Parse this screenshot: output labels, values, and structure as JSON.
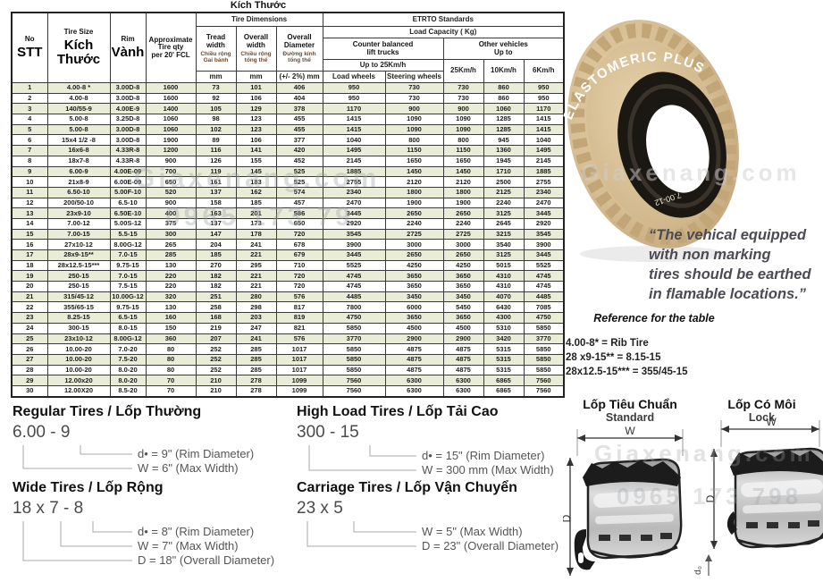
{
  "sep": "/",
  "title": "Kích Thước",
  "table": {
    "header": {
      "no": "No",
      "stt": "STT",
      "tire_size": "Tire Size",
      "kich_thuoc": "Kích Thước",
      "rim": "Rim",
      "vanh": "Vành",
      "approx_l1": "Approximate",
      "approx_l2": "Tire qty",
      "approx_l3": "per 20' FCL",
      "tire_dimensions": "Tire Dimensions",
      "etrto": "ETRTO Standards",
      "load_capacity": "Load Capacity ( Kg)",
      "tread_en": "Tread width",
      "tread_vi": "Chiều rộng Gai bánh",
      "overall_width_en": "Overall width",
      "overall_width_vi": "Chiều rộng tổng thể",
      "overall_dia_en": "Overall Diameter",
      "overall_dia_vi": "Đường kính tổng thể",
      "counter_l1": "Counter balanced",
      "counter_l2": "lift trucks",
      "other_l1": "Other vehicles",
      "other_l2": "Up to",
      "up_to_25": "Up to 25Km/h",
      "kmh_25": "25Km/h",
      "kmh_10": "10Km/h",
      "kmh_6": "6Km/h",
      "load_wheels": "Load wheels",
      "steering_wheels": "Steering wheels",
      "mm_tread": "mm",
      "mm_overall": "mm",
      "tolerance_mm": "(+/- 2%) mm"
    },
    "rows": [
      [
        "1",
        "4.00-8 *",
        "3.00D-8",
        "1600",
        "73",
        "101",
        "406",
        "950",
        "730",
        "730",
        "860",
        "950"
      ],
      [
        "2",
        "4.00-8",
        "3.00D-8",
        "1600",
        "92",
        "106",
        "404",
        "950",
        "730",
        "730",
        "860",
        "950"
      ],
      [
        "3",
        "140/55-9",
        "4.00E-9",
        "1400",
        "105",
        "129",
        "378",
        "1170",
        "900",
        "900",
        "1060",
        "1170"
      ],
      [
        "4",
        "5.00-8",
        "3.25D-8",
        "1060",
        "98",
        "123",
        "455",
        "1415",
        "1090",
        "1090",
        "1285",
        "1415"
      ],
      [
        "5",
        "5.00-8",
        "3.00D-8",
        "1060",
        "102",
        "123",
        "455",
        "1415",
        "1090",
        "1090",
        "1285",
        "1415"
      ],
      [
        "6",
        "15x4 1/2 -8",
        "3.00D-8",
        "1900",
        "89",
        "106",
        "377",
        "1040",
        "800",
        "800",
        "945",
        "1040"
      ],
      [
        "7",
        "16x6-8",
        "4.33R-8",
        "1200",
        "116",
        "141",
        "420",
        "1495",
        "1150",
        "1150",
        "1360",
        "1495"
      ],
      [
        "8",
        "18x7-8",
        "4.33R-8",
        "900",
        "126",
        "155",
        "452",
        "2145",
        "1650",
        "1650",
        "1945",
        "2145"
      ],
      [
        "9",
        "6.00-9",
        "4.00E-09",
        "700",
        "119",
        "145",
        "525",
        "1885",
        "1450",
        "1450",
        "1710",
        "1885"
      ],
      [
        "10",
        "21x8-9",
        "6.00E-09",
        "650",
        "161",
        "183",
        "525",
        "2755",
        "2120",
        "2120",
        "2500",
        "2755"
      ],
      [
        "11",
        "6.50-10",
        "5.00F-10",
        "520",
        "137",
        "162",
        "574",
        "2340",
        "1800",
        "1800",
        "2125",
        "2340"
      ],
      [
        "12",
        "200/50-10",
        "6.5-10",
        "900",
        "158",
        "185",
        "457",
        "2470",
        "1900",
        "1900",
        "2240",
        "2470"
      ],
      [
        "13",
        "23x9-10",
        "6.50E-10",
        "400",
        "163",
        "201",
        "586",
        "3445",
        "2650",
        "2650",
        "3125",
        "3445"
      ],
      [
        "14",
        "7.00-12",
        "5.00S-12",
        "375",
        "137",
        "173",
        "650",
        "2920",
        "2240",
        "2240",
        "2645",
        "2920"
      ],
      [
        "15",
        "7.00-15",
        "5.5-15",
        "300",
        "147",
        "178",
        "720",
        "3545",
        "2725",
        "2725",
        "3215",
        "3545"
      ],
      [
        "16",
        "27x10-12",
        "8.00G-12",
        "265",
        "204",
        "241",
        "678",
        "3900",
        "3000",
        "3000",
        "3540",
        "3900"
      ],
      [
        "17",
        "28x9-15**",
        "7.0-15",
        "285",
        "185",
        "221",
        "679",
        "3445",
        "2650",
        "2650",
        "3125",
        "3445"
      ],
      [
        "18",
        "28x12.5-15***",
        "9.75-15",
        "130",
        "270",
        "295",
        "710",
        "5525",
        "4250",
        "4250",
        "5015",
        "5525"
      ],
      [
        "19",
        "250-15",
        "7.0-15",
        "220",
        "182",
        "221",
        "720",
        "4745",
        "3650",
        "3650",
        "4310",
        "4745"
      ],
      [
        "20",
        "250-15",
        "7.5-15",
        "220",
        "182",
        "221",
        "720",
        "4745",
        "3650",
        "3650",
        "4310",
        "4745"
      ],
      [
        "21",
        "315/45-12",
        "10.00G-12",
        "320",
        "251",
        "280",
        "576",
        "4485",
        "3450",
        "3450",
        "4070",
        "4485"
      ],
      [
        "22",
        "355/65-15",
        "9.75-15",
        "130",
        "258",
        "298",
        "817",
        "7800",
        "6000",
        "5450",
        "6430",
        "7085"
      ],
      [
        "23",
        "8.25-15",
        "6.5-15",
        "160",
        "168",
        "203",
        "819",
        "4750",
        "3650",
        "3650",
        "4300",
        "4750"
      ],
      [
        "24",
        "300-15",
        "8.0-15",
        "150",
        "219",
        "247",
        "821",
        "5850",
        "4500",
        "4500",
        "5310",
        "5850"
      ],
      [
        "25",
        "23x10-12",
        "8.00G-12",
        "360",
        "207",
        "241",
        "576",
        "3770",
        "2900",
        "2900",
        "3420",
        "3770"
      ],
      [
        "26",
        "10.00-20",
        "7.0-20",
        "80",
        "252",
        "285",
        "1017",
        "5850",
        "4875",
        "4875",
        "5315",
        "5850"
      ],
      [
        "27",
        "10.00-20",
        "7.5-20",
        "80",
        "252",
        "285",
        "1017",
        "5850",
        "4875",
        "4875",
        "5315",
        "5850"
      ],
      [
        "28",
        "10.00-20",
        "8.0-20",
        "80",
        "252",
        "285",
        "1017",
        "5850",
        "4875",
        "4875",
        "5315",
        "5850"
      ],
      [
        "29",
        "12.00x20",
        "8.0-20",
        "70",
        "210",
        "278",
        "1099",
        "7560",
        "6300",
        "6300",
        "6865",
        "7560"
      ],
      [
        "30",
        "12.00X20",
        "8.5-20",
        "70",
        "210",
        "278",
        "1099",
        "7560",
        "6300",
        "6300",
        "6865",
        "7560"
      ]
    ]
  },
  "tire_photo": {
    "brand_text": "ELASTOMERIC PLUS",
    "size_marking": "7.00-12",
    "beige": "#d6bd92",
    "beige_dark": "#bda176",
    "inner_black": "#1b1713"
  },
  "quote": {
    "lines": [
      "“The vehical equipped",
      "with non marking",
      "tires should be earthed",
      "in flamable locations.”"
    ]
  },
  "reference": {
    "title": "Reference for the  table",
    "lines": [
      "4.00-8* =   Rib Tire",
      "28 x9-15** = 8.15-15",
      "28x12.5-15*** = 355/45-15"
    ]
  },
  "tire_types": {
    "regular": {
      "title_en": "Regular Tires",
      "title_vi": "Lốp Thường",
      "size": "6.00 - 9",
      "callouts": [
        "d• = 9\" (Rim Diameter)",
        "W = 6\" (Max Width)"
      ]
    },
    "wide": {
      "title_en": "Wide Tires",
      "title_vi": "Lốp Rộng",
      "size": "18 x 7 - 8",
      "callouts": [
        "d• = 8\" (Rim Diameter)",
        "W = 7\" (Max Width)",
        "D = 18\" (Overall Diameter)"
      ]
    },
    "high_load": {
      "title_en": "High Load Tires",
      "title_vi": "Lốp Tải Cao",
      "size": "300 - 15",
      "callouts": [
        "d• = 15\" (Rim Diameter)",
        "W = 300 mm (Max Width)"
      ]
    },
    "carriage": {
      "title_en": "Carriage Tires",
      "title_vi": "Lốp Vận Chuyển",
      "size": "23 x 5",
      "callouts": [
        "W = 5\" (Max Width)",
        "D = 23\" (Overall Diameter)"
      ]
    }
  },
  "diagrams": {
    "standard": {
      "title_vi": "Lốp Tiêu Chuẩn",
      "title_en": "Standard",
      "w": "W",
      "d": "D"
    },
    "lock": {
      "title_vi": "Lốp Có Môi",
      "title_en": "Lock",
      "w": "W",
      "d": "D",
      "d0": "d₀"
    }
  },
  "watermark": {
    "name": "Giaxenang.com",
    "phone": "0965 173 798",
    "phone_partial": "0965 173 79"
  }
}
